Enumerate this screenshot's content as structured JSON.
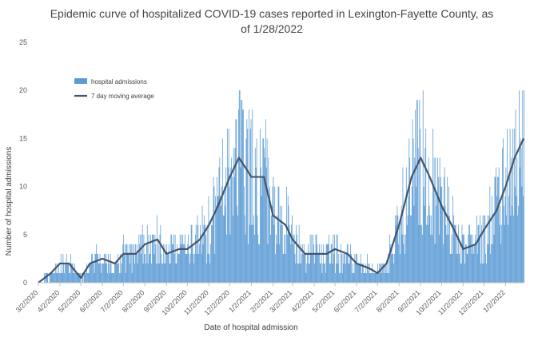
{
  "chart_data": {
    "type": "bar",
    "title": "Epidemic curve of hospitalized COVID-19 cases reported in Lexington-Fayette County, as of 1/28/2022",
    "xlabel": "Date of hospital admission",
    "ylabel": "Number of hospital admissions",
    "ylim": [
      0,
      25
    ],
    "yticks": [
      "0",
      "5",
      "10",
      "15",
      "20",
      "25"
    ],
    "x_range": [
      "2020-03-02",
      "2022-01-28"
    ],
    "x_tick_labels": [
      "3/2/2020",
      "4/2/2020",
      "5/2/2020",
      "6/2/2020",
      "7/2/2020",
      "8/2/2020",
      "9/2/2020",
      "10/2/2020",
      "11/2/2020",
      "12/2/2020",
      "1/2/2021",
      "2/2/2021",
      "3/2/2021",
      "4/2/2021",
      "5/2/2021",
      "6/2/2021",
      "7/2/2021",
      "8/2/2021",
      "9/2/2021",
      "10/2/2021",
      "11/2/2021",
      "12/2/2021",
      "1/2/2022"
    ],
    "x_tick_dates": [
      "2020-03-02",
      "2020-04-02",
      "2020-05-02",
      "2020-06-02",
      "2020-07-02",
      "2020-08-02",
      "2020-09-02",
      "2020-10-02",
      "2020-11-02",
      "2020-12-02",
      "2021-01-02",
      "2021-02-02",
      "2021-03-02",
      "2021-04-02",
      "2021-05-02",
      "2021-06-02",
      "2021-07-02",
      "2021-08-02",
      "2021-09-02",
      "2021-10-02",
      "2021-11-02",
      "2021-12-02",
      "2022-01-02"
    ],
    "grid": false,
    "legend": {
      "placement": "top-left",
      "entries": [
        "hospital admissions",
        "7 day moving average"
      ]
    },
    "colors": {
      "bars": "#5b9bd5",
      "line": "#44546a"
    },
    "series": [
      {
        "name": "hospital admissions",
        "type": "bar",
        "daily_approx": true,
        "dates": [
          "2020-03-02",
          "2020-03-20",
          "2020-04-02",
          "2020-04-15",
          "2020-05-02",
          "2020-05-15",
          "2020-06-02",
          "2020-06-20",
          "2020-07-02",
          "2020-07-20",
          "2020-08-02",
          "2020-08-20",
          "2020-09-02",
          "2020-09-20",
          "2020-10-02",
          "2020-10-20",
          "2020-11-02",
          "2020-11-15",
          "2020-12-02",
          "2020-12-15",
          "2021-01-02",
          "2021-01-20",
          "2021-02-02",
          "2021-02-20",
          "2021-03-02",
          "2021-03-20",
          "2021-04-02",
          "2021-04-20",
          "2021-05-02",
          "2021-05-20",
          "2021-06-02",
          "2021-06-20",
          "2021-07-02",
          "2021-07-15",
          "2021-08-02",
          "2021-08-20",
          "2021-09-02",
          "2021-09-15",
          "2021-10-02",
          "2021-10-20",
          "2021-11-02",
          "2021-11-20",
          "2021-12-02",
          "2021-12-20",
          "2022-01-02",
          "2022-01-15",
          "2022-01-28"
        ],
        "values": [
          0,
          1,
          2,
          2,
          0.5,
          2,
          2.5,
          2,
          3,
          3,
          4,
          4.5,
          3,
          3.5,
          3.5,
          4.5,
          6,
          8,
          11,
          13,
          11,
          11,
          7,
          6,
          4.5,
          3,
          3,
          3,
          3.5,
          3,
          2,
          1.5,
          1,
          2,
          6,
          11,
          13,
          11,
          8,
          5.5,
          3.5,
          4,
          5.5,
          7.5,
          10,
          13,
          15
        ]
      },
      {
        "name": "7 day moving average",
        "type": "line",
        "dates": [
          "2020-03-02",
          "2020-03-20",
          "2020-04-02",
          "2020-04-15",
          "2020-05-02",
          "2020-05-15",
          "2020-06-02",
          "2020-06-20",
          "2020-07-02",
          "2020-07-20",
          "2020-08-02",
          "2020-08-20",
          "2020-09-02",
          "2020-09-20",
          "2020-10-02",
          "2020-10-20",
          "2020-11-02",
          "2020-11-15",
          "2020-12-02",
          "2020-12-15",
          "2021-01-02",
          "2021-01-20",
          "2021-02-02",
          "2021-02-20",
          "2021-03-02",
          "2021-03-20",
          "2021-04-02",
          "2021-04-20",
          "2021-05-02",
          "2021-05-20",
          "2021-06-02",
          "2021-06-20",
          "2021-07-02",
          "2021-07-15",
          "2021-08-02",
          "2021-08-20",
          "2021-09-02",
          "2021-09-15",
          "2021-10-02",
          "2021-10-20",
          "2021-11-02",
          "2021-11-20",
          "2021-12-02",
          "2021-12-20",
          "2022-01-02",
          "2022-01-15",
          "2022-01-28"
        ],
        "values": [
          0,
          1,
          2,
          2,
          0.5,
          2,
          2.5,
          2,
          3,
          3,
          4,
          4.5,
          3,
          3.5,
          3.5,
          4.5,
          6,
          8,
          11,
          13,
          11,
          11,
          7,
          6,
          4.5,
          3,
          3,
          3,
          3.5,
          3,
          2,
          1.5,
          1,
          2,
          6,
          11,
          13,
          11,
          8,
          5.5,
          3.5,
          4,
          5.5,
          7.5,
          10,
          13,
          15
        ]
      }
    ]
  }
}
